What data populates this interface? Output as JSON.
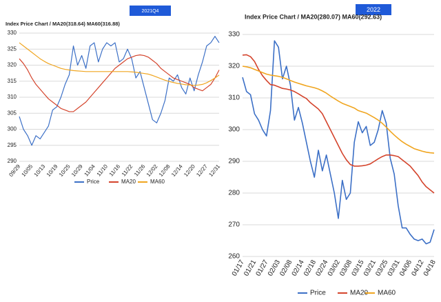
{
  "chart_data": [
    {
      "type": "line",
      "tag": "2021Q4",
      "title": "Index Price Chart / MA20(318.64) MA60(316.88)",
      "categories": [
        "09/29",
        null,
        null,
        "10/05",
        null,
        null,
        "10/13",
        null,
        null,
        "10/19",
        null,
        null,
        "10/25",
        null,
        null,
        "10/29",
        null,
        null,
        "11/04",
        null,
        null,
        "11/10",
        null,
        null,
        "11/16",
        null,
        null,
        "11/22",
        null,
        null,
        "11/26",
        null,
        null,
        "12/02",
        null,
        null,
        "12/08",
        null,
        null,
        "12/14",
        null,
        null,
        "12/20",
        null,
        null,
        "12/27",
        null,
        null,
        "12/31"
      ],
      "series": [
        {
          "name": "Price",
          "color": "#3b6fc6",
          "values": [
            304,
            300,
            298,
            295,
            298,
            297,
            299,
            301,
            306,
            307,
            310,
            314,
            317,
            326,
            320,
            323,
            319,
            326,
            327,
            321,
            325,
            327,
            326,
            327,
            321,
            322,
            325,
            322,
            316,
            318,
            313,
            308,
            303,
            302,
            305,
            309,
            316,
            315,
            317,
            313,
            311,
            316,
            312,
            317,
            321,
            326,
            327,
            329,
            327
          ]
        },
        {
          "name": "MA20",
          "color": "#d4432b",
          "values": [
            322,
            320.5,
            318.5,
            316,
            314,
            312.5,
            311,
            309.5,
            308.5,
            307.5,
            306.5,
            306,
            305.5,
            305.5,
            306.5,
            307.5,
            308.5,
            310,
            311.5,
            313,
            314.5,
            316,
            317.5,
            319,
            320,
            321,
            322,
            322.5,
            323,
            323.2,
            323,
            322.5,
            321.5,
            320.5,
            319,
            318,
            317,
            316,
            315.5,
            315,
            314.5,
            314,
            313,
            312.5,
            312,
            313,
            314,
            316,
            318.5
          ]
        },
        {
          "name": "MA60",
          "color": "#f0a51f",
          "values": [
            327,
            326,
            325,
            324,
            323,
            322,
            321.2,
            320.5,
            320,
            319.5,
            319,
            318.7,
            318.5,
            318.3,
            318.2,
            318.1,
            318,
            318,
            318,
            318,
            318,
            318,
            318,
            318,
            318,
            318,
            318,
            317.9,
            317.8,
            317.6,
            317.4,
            317.2,
            316.8,
            316.3,
            315.8,
            315.3,
            314.9,
            314.6,
            314.3,
            314.1,
            313.9,
            313.8,
            313.7,
            313.8,
            314,
            314.5,
            315.2,
            316,
            316.9
          ]
        }
      ],
      "ylim": [
        290,
        330
      ],
      "yticks": [
        290,
        295,
        300,
        305,
        310,
        315,
        320,
        325,
        330
      ],
      "grid": true,
      "legend": "bottom"
    },
    {
      "type": "line",
      "tag": "2022",
      "title": "Index Price Chart / MA20(280.07) MA60(292.63)",
      "categories": [
        "01/17",
        null,
        null,
        "01/21",
        null,
        null,
        "01/27",
        null,
        null,
        "02/03",
        null,
        null,
        "02/08",
        null,
        null,
        "02/14",
        null,
        null,
        "02/18",
        null,
        null,
        "02/24",
        null,
        null,
        "03/02",
        null,
        null,
        "03/08",
        null,
        null,
        "03/15",
        null,
        null,
        "03/21",
        null,
        null,
        "03/25",
        null,
        null,
        "03/31",
        null,
        null,
        "04/06",
        null,
        null,
        "04/12",
        null,
        null,
        "04/18"
      ],
      "series": [
        {
          "name": "Price",
          "color": "#3b6fc6",
          "values": [
            316.5,
            312,
            311,
            305,
            303,
            300,
            298,
            306,
            328,
            326,
            316,
            320,
            314,
            303,
            307,
            302,
            296,
            290,
            285,
            293.5,
            287,
            292,
            286,
            280,
            272,
            284,
            278,
            280,
            296,
            302.5,
            299,
            301,
            295,
            296,
            300,
            306,
            302,
            291,
            286,
            276,
            269,
            269,
            267,
            265.5,
            265,
            265.5,
            264,
            264.5,
            268.5
          ]
        },
        {
          "name": "MA20",
          "color": "#d4432b",
          "values": [
            323.5,
            323.6,
            323,
            321.5,
            319,
            317,
            315.5,
            314.2,
            314,
            313.5,
            313,
            312.8,
            312.5,
            312,
            311.3,
            310.5,
            309.8,
            308.5,
            307.5,
            306.5,
            305,
            302.5,
            300,
            297.5,
            295,
            292.5,
            290.5,
            289,
            288.5,
            288.5,
            288.6,
            288.8,
            289.2,
            290,
            290.8,
            291.5,
            292,
            292,
            291.8,
            291.5,
            290.5,
            289.5,
            288.5,
            287,
            285.5,
            283.5,
            282,
            281,
            280
          ]
        },
        {
          "name": "MA60",
          "color": "#f0a51f",
          "values": [
            320,
            319.8,
            319.5,
            319,
            318.5,
            318,
            317.5,
            317.2,
            317,
            316.8,
            316.5,
            316,
            315.5,
            315,
            314.6,
            314.2,
            313.8,
            313.5,
            313.2,
            312.8,
            312.2,
            311.5,
            310.6,
            309.8,
            309,
            308.3,
            307.8,
            307.3,
            306.8,
            306,
            305.6,
            305.2,
            304.5,
            303.8,
            303,
            302,
            300.8,
            299.5,
            298.3,
            297.2,
            296.2,
            295.4,
            294.7,
            294,
            293.6,
            293.2,
            292.9,
            292.7,
            292.6
          ]
        }
      ],
      "ylim": [
        260,
        330
      ],
      "yticks": [
        260,
        270,
        280,
        290,
        300,
        310,
        320,
        330
      ],
      "grid": true,
      "legend": "bottom"
    }
  ]
}
